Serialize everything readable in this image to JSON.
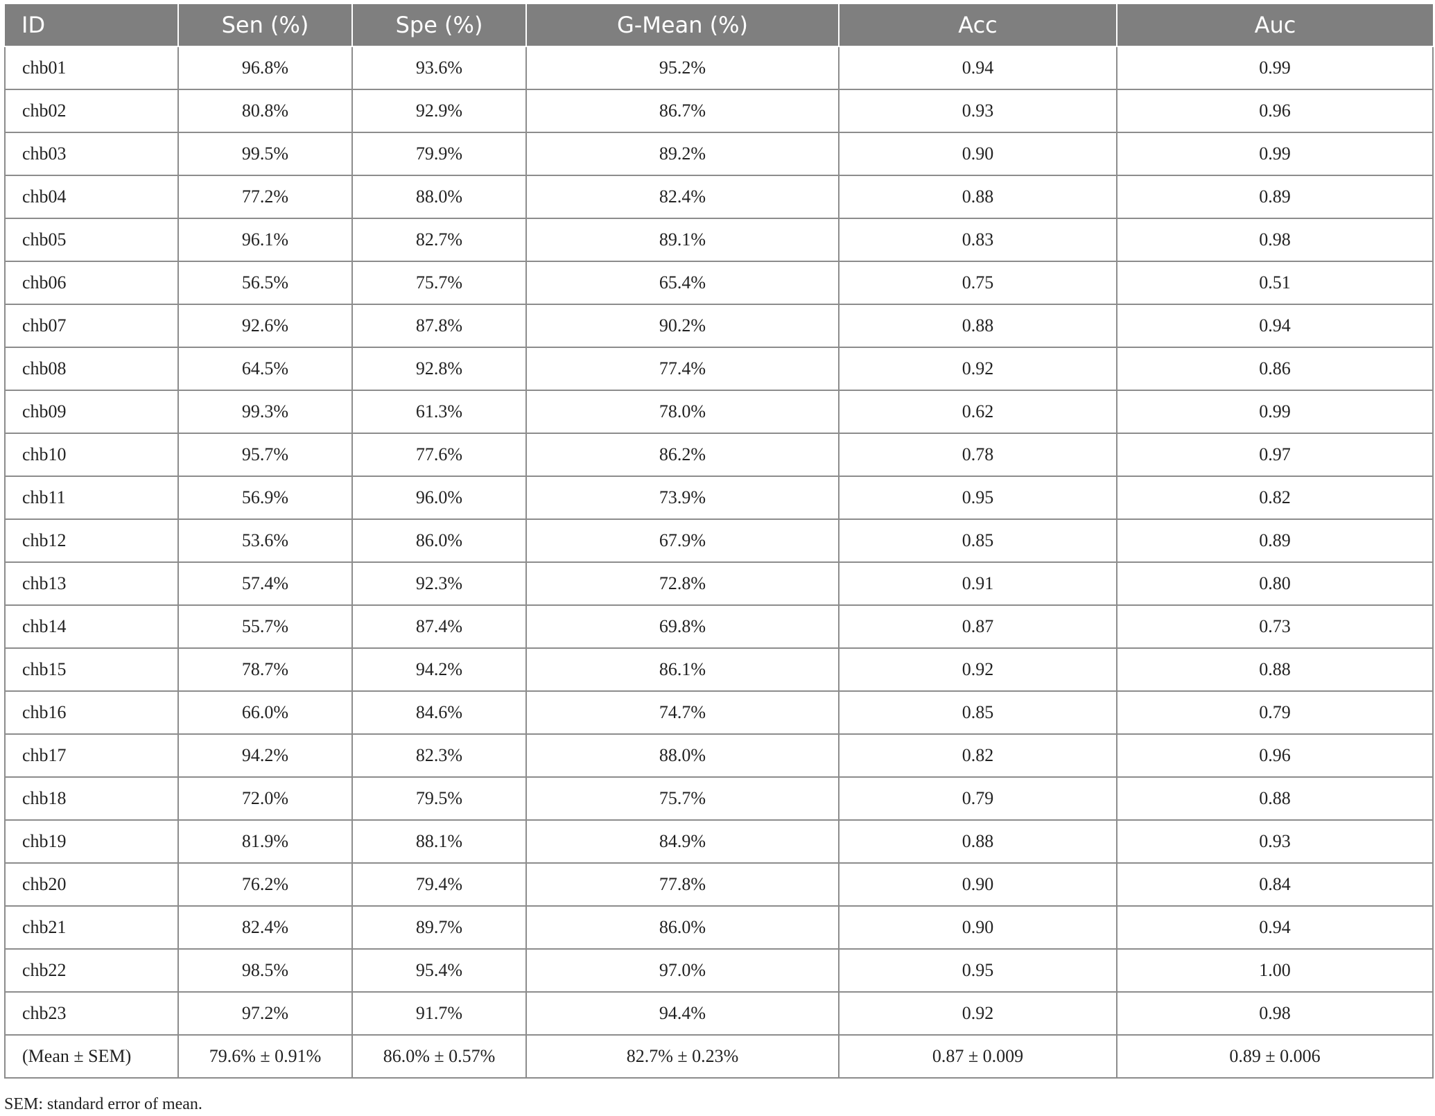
{
  "table": {
    "headers": [
      "ID",
      "Sen (%)",
      "Spe (%)",
      "G-Mean (%)",
      "Acc",
      "Auc"
    ],
    "rows": [
      [
        "chb01",
        "96.8%",
        "93.6%",
        "95.2%",
        "0.94",
        "0.99"
      ],
      [
        "chb02",
        "80.8%",
        "92.9%",
        "86.7%",
        "0.93",
        "0.96"
      ],
      [
        "chb03",
        "99.5%",
        "79.9%",
        "89.2%",
        "0.90",
        "0.99"
      ],
      [
        "chb04",
        "77.2%",
        "88.0%",
        "82.4%",
        "0.88",
        "0.89"
      ],
      [
        "chb05",
        "96.1%",
        "82.7%",
        "89.1%",
        "0.83",
        "0.98"
      ],
      [
        "chb06",
        "56.5%",
        "75.7%",
        "65.4%",
        "0.75",
        "0.51"
      ],
      [
        "chb07",
        "92.6%",
        "87.8%",
        "90.2%",
        "0.88",
        "0.94"
      ],
      [
        "chb08",
        "64.5%",
        "92.8%",
        "77.4%",
        "0.92",
        "0.86"
      ],
      [
        "chb09",
        "99.3%",
        "61.3%",
        "78.0%",
        "0.62",
        "0.99"
      ],
      [
        "chb10",
        "95.7%",
        "77.6%",
        "86.2%",
        "0.78",
        "0.97"
      ],
      [
        "chb11",
        "56.9%",
        "96.0%",
        "73.9%",
        "0.95",
        "0.82"
      ],
      [
        "chb12",
        "53.6%",
        "86.0%",
        "67.9%",
        "0.85",
        "0.89"
      ],
      [
        "chb13",
        "57.4%",
        "92.3%",
        "72.8%",
        "0.91",
        "0.80"
      ],
      [
        "chb14",
        "55.7%",
        "87.4%",
        "69.8%",
        "0.87",
        "0.73"
      ],
      [
        "chb15",
        "78.7%",
        "94.2%",
        "86.1%",
        "0.92",
        "0.88"
      ],
      [
        "chb16",
        "66.0%",
        "84.6%",
        "74.7%",
        "0.85",
        "0.79"
      ],
      [
        "chb17",
        "94.2%",
        "82.3%",
        "88.0%",
        "0.82",
        "0.96"
      ],
      [
        "chb18",
        "72.0%",
        "79.5%",
        "75.7%",
        "0.79",
        "0.88"
      ],
      [
        "chb19",
        "81.9%",
        "88.1%",
        "84.9%",
        "0.88",
        "0.93"
      ],
      [
        "chb20",
        "76.2%",
        "79.4%",
        "77.8%",
        "0.90",
        "0.84"
      ],
      [
        "chb21",
        "82.4%",
        "89.7%",
        "86.0%",
        "0.90",
        "0.94"
      ],
      [
        "chb22",
        "98.5%",
        "95.4%",
        "97.0%",
        "0.95",
        "1.00"
      ],
      [
        "chb23",
        "97.2%",
        "91.7%",
        "94.4%",
        "0.92",
        "0.98"
      ],
      [
        "(Mean ± SEM)",
        "79.6% ± 0.91%",
        "86.0% ± 0.57%",
        "82.7% ± 0.23%",
        "0.87 ± 0.009",
        "0.89 ± 0.006"
      ]
    ]
  },
  "footnote": "SEM: standard error of mean."
}
